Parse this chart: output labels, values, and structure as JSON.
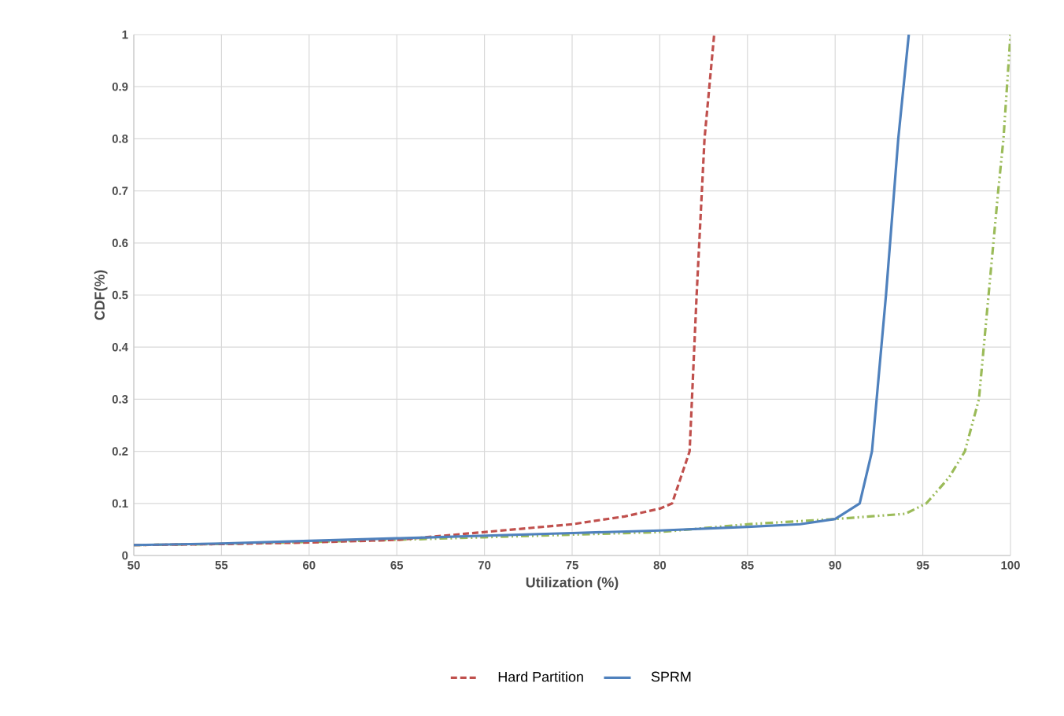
{
  "chart_data": {
    "type": "line",
    "xlabel": "Utilization (%)",
    "ylabel": "CDF(%)",
    "xlim": [
      50,
      100
    ],
    "ylim": [
      0,
      1
    ],
    "xticks": [
      50,
      55,
      60,
      65,
      70,
      75,
      80,
      85,
      90,
      95,
      100
    ],
    "yticks": [
      0,
      0.1,
      0.2,
      0.3,
      0.4,
      0.5,
      0.6,
      0.7,
      0.8,
      0.9,
      1
    ],
    "grid": true,
    "legend": "bottom",
    "marker": "none",
    "series": [
      {
        "color": "#9bbb59",
        "line_style": "dashdot",
        "x": [
          50,
          55,
          60,
          65,
          70,
          75,
          80,
          85,
          90,
          94,
          95.2,
          96.5,
          97.4,
          98.2,
          98.75,
          99.3,
          99.6,
          100
        ],
        "values": [
          0.02,
          0.022,
          0.026,
          0.03,
          0.035,
          0.04,
          0.045,
          0.06,
          0.07,
          0.08,
          0.1,
          0.15,
          0.2,
          0.3,
          0.5,
          0.7,
          0.8,
          1
        ]
      },
      {
        "name": "Hard Partition",
        "color": "#c0504d",
        "line_style": "dashed",
        "x": [
          50,
          55,
          60,
          65,
          70,
          75,
          78,
          80,
          80.7,
          81.1,
          81.7,
          82.1,
          82.55,
          83.1
        ],
        "values": [
          0.02,
          0.022,
          0.025,
          0.03,
          0.045,
          0.06,
          0.075,
          0.09,
          0.1,
          0.14,
          0.2,
          0.5,
          0.8,
          1
        ]
      },
      {
        "name": "SPRM",
        "color": "#4f81bd",
        "line_style": "solid",
        "x": [
          50,
          55,
          60,
          65,
          70,
          75,
          80,
          85,
          88,
          90,
          91.4,
          92.1,
          92.9,
          93.6,
          94.2
        ],
        "values": [
          0.02,
          0.023,
          0.028,
          0.033,
          0.038,
          0.043,
          0.048,
          0.055,
          0.06,
          0.07,
          0.1,
          0.2,
          0.5,
          0.8,
          1
        ]
      }
    ]
  }
}
